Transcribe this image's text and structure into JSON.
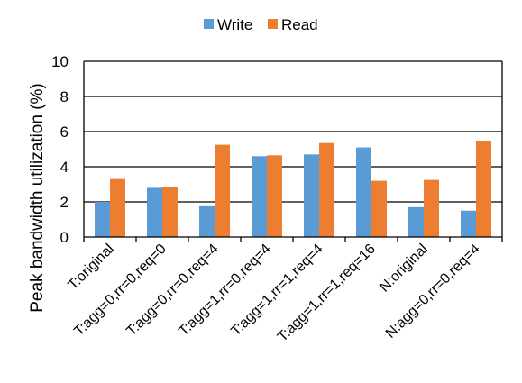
{
  "chart_data": {
    "type": "bar",
    "title": "",
    "xlabel": "",
    "ylabel": "Peak bandwidth utilization (%)",
    "ylim": [
      0,
      10
    ],
    "yticks": [
      0,
      2,
      4,
      6,
      8,
      10
    ],
    "grid": true,
    "legend_position": "top-center",
    "categories": [
      "T:original",
      "T:agg=0,rr=0,req=0",
      "T:agg=0,rr=0,req=4",
      "T:agg=1,rr=0,req=4",
      "T:agg=1,rr=1,req=4",
      "T:agg=1,rr=1,req=16",
      "N:original",
      "N:agg=0,rr=0,req=4"
    ],
    "series": [
      {
        "name": "Write",
        "color": "#5B9BD5",
        "values": [
          2.0,
          2.8,
          1.75,
          4.6,
          4.7,
          5.1,
          1.7,
          1.5
        ]
      },
      {
        "name": "Read",
        "color": "#ED7D31",
        "values": [
          3.3,
          2.85,
          5.25,
          4.65,
          5.35,
          3.2,
          3.25,
          5.45
        ]
      }
    ]
  }
}
